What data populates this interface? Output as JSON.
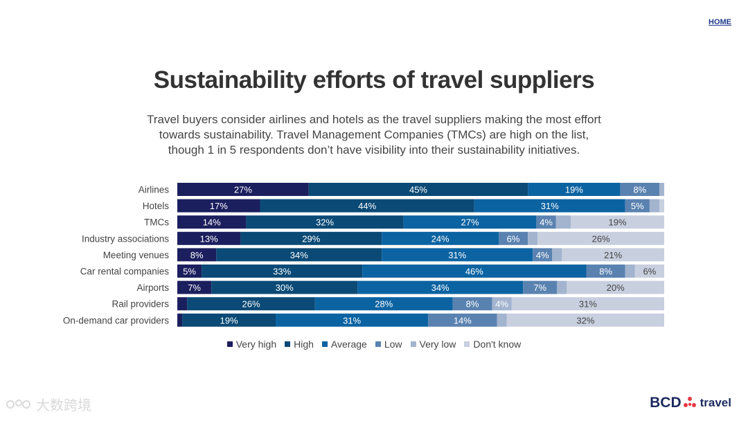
{
  "nav": {
    "home_label": "HOME"
  },
  "header": {
    "title": "Sustainability efforts of travel suppliers",
    "subtitle_lines": [
      "Travel buyers consider airlines and hotels as the travel suppliers making the most effort",
      "towards sustainability. Travel Management Companies (TMCs) are high on the list,",
      "though 1 in 5 respondents don’t have visibility into their sustainability initiatives."
    ]
  },
  "chart_data": {
    "type": "bar",
    "orientation": "horizontal-stacked-100",
    "title": "Sustainability efforts of travel suppliers",
    "categories": [
      "Airlines",
      "Hotels",
      "TMCs",
      "Industry associations",
      "Meeting venues",
      "Car rental companies",
      "Airports",
      "Rail providers",
      "On-demand car providers"
    ],
    "series": [
      {
        "name": "Very high",
        "color": "#1b1f5e",
        "values": [
          27,
          17,
          14,
          13,
          8,
          5,
          7,
          2,
          1
        ]
      },
      {
        "name": "High",
        "color": "#0b4a76",
        "values": [
          45,
          44,
          32,
          29,
          34,
          33,
          30,
          26,
          19
        ]
      },
      {
        "name": "Average",
        "color": "#0c63a2",
        "values": [
          19,
          31,
          27,
          24,
          31,
          46,
          34,
          28,
          31
        ]
      },
      {
        "name": "Low",
        "color": "#5a82b0",
        "values": [
          8,
          5,
          4,
          6,
          4,
          8,
          7,
          8,
          14
        ]
      },
      {
        "name": "Very low",
        "color": "#a3b4cf",
        "values": [
          1,
          2,
          3,
          2,
          2,
          2,
          2,
          4,
          2
        ]
      },
      {
        "name": "Don't know",
        "color": "#c8cfdf",
        "values": [
          0,
          1,
          19,
          26,
          21,
          6,
          20,
          31,
          32
        ]
      }
    ],
    "labels": [
      [
        "27%",
        "45%",
        "19%",
        "8%",
        "",
        ""
      ],
      [
        "17%",
        "44%",
        "31%",
        "5%",
        "",
        ""
      ],
      [
        "14%",
        "32%",
        "27%",
        "4%",
        "",
        "19%"
      ],
      [
        "13%",
        "29%",
        "24%",
        "6%",
        "",
        "26%"
      ],
      [
        "8%",
        "34%",
        "31%",
        "4%",
        "",
        "21%"
      ],
      [
        "5%",
        "33%",
        "46%",
        "8%",
        "",
        "6%"
      ],
      [
        "7%",
        "30%",
        "34%",
        "7%",
        "",
        "20%"
      ],
      [
        "",
        "26%",
        "28%",
        "8%",
        "4%",
        "31%"
      ],
      [
        "",
        "19%",
        "31%",
        "14%",
        "",
        "32%"
      ]
    ],
    "xlim": [
      0,
      100
    ],
    "legend_position": "bottom"
  },
  "footer": {
    "watermark_text": "大数跨境",
    "brand_text": "BCD",
    "brand_suffix": "travel"
  }
}
